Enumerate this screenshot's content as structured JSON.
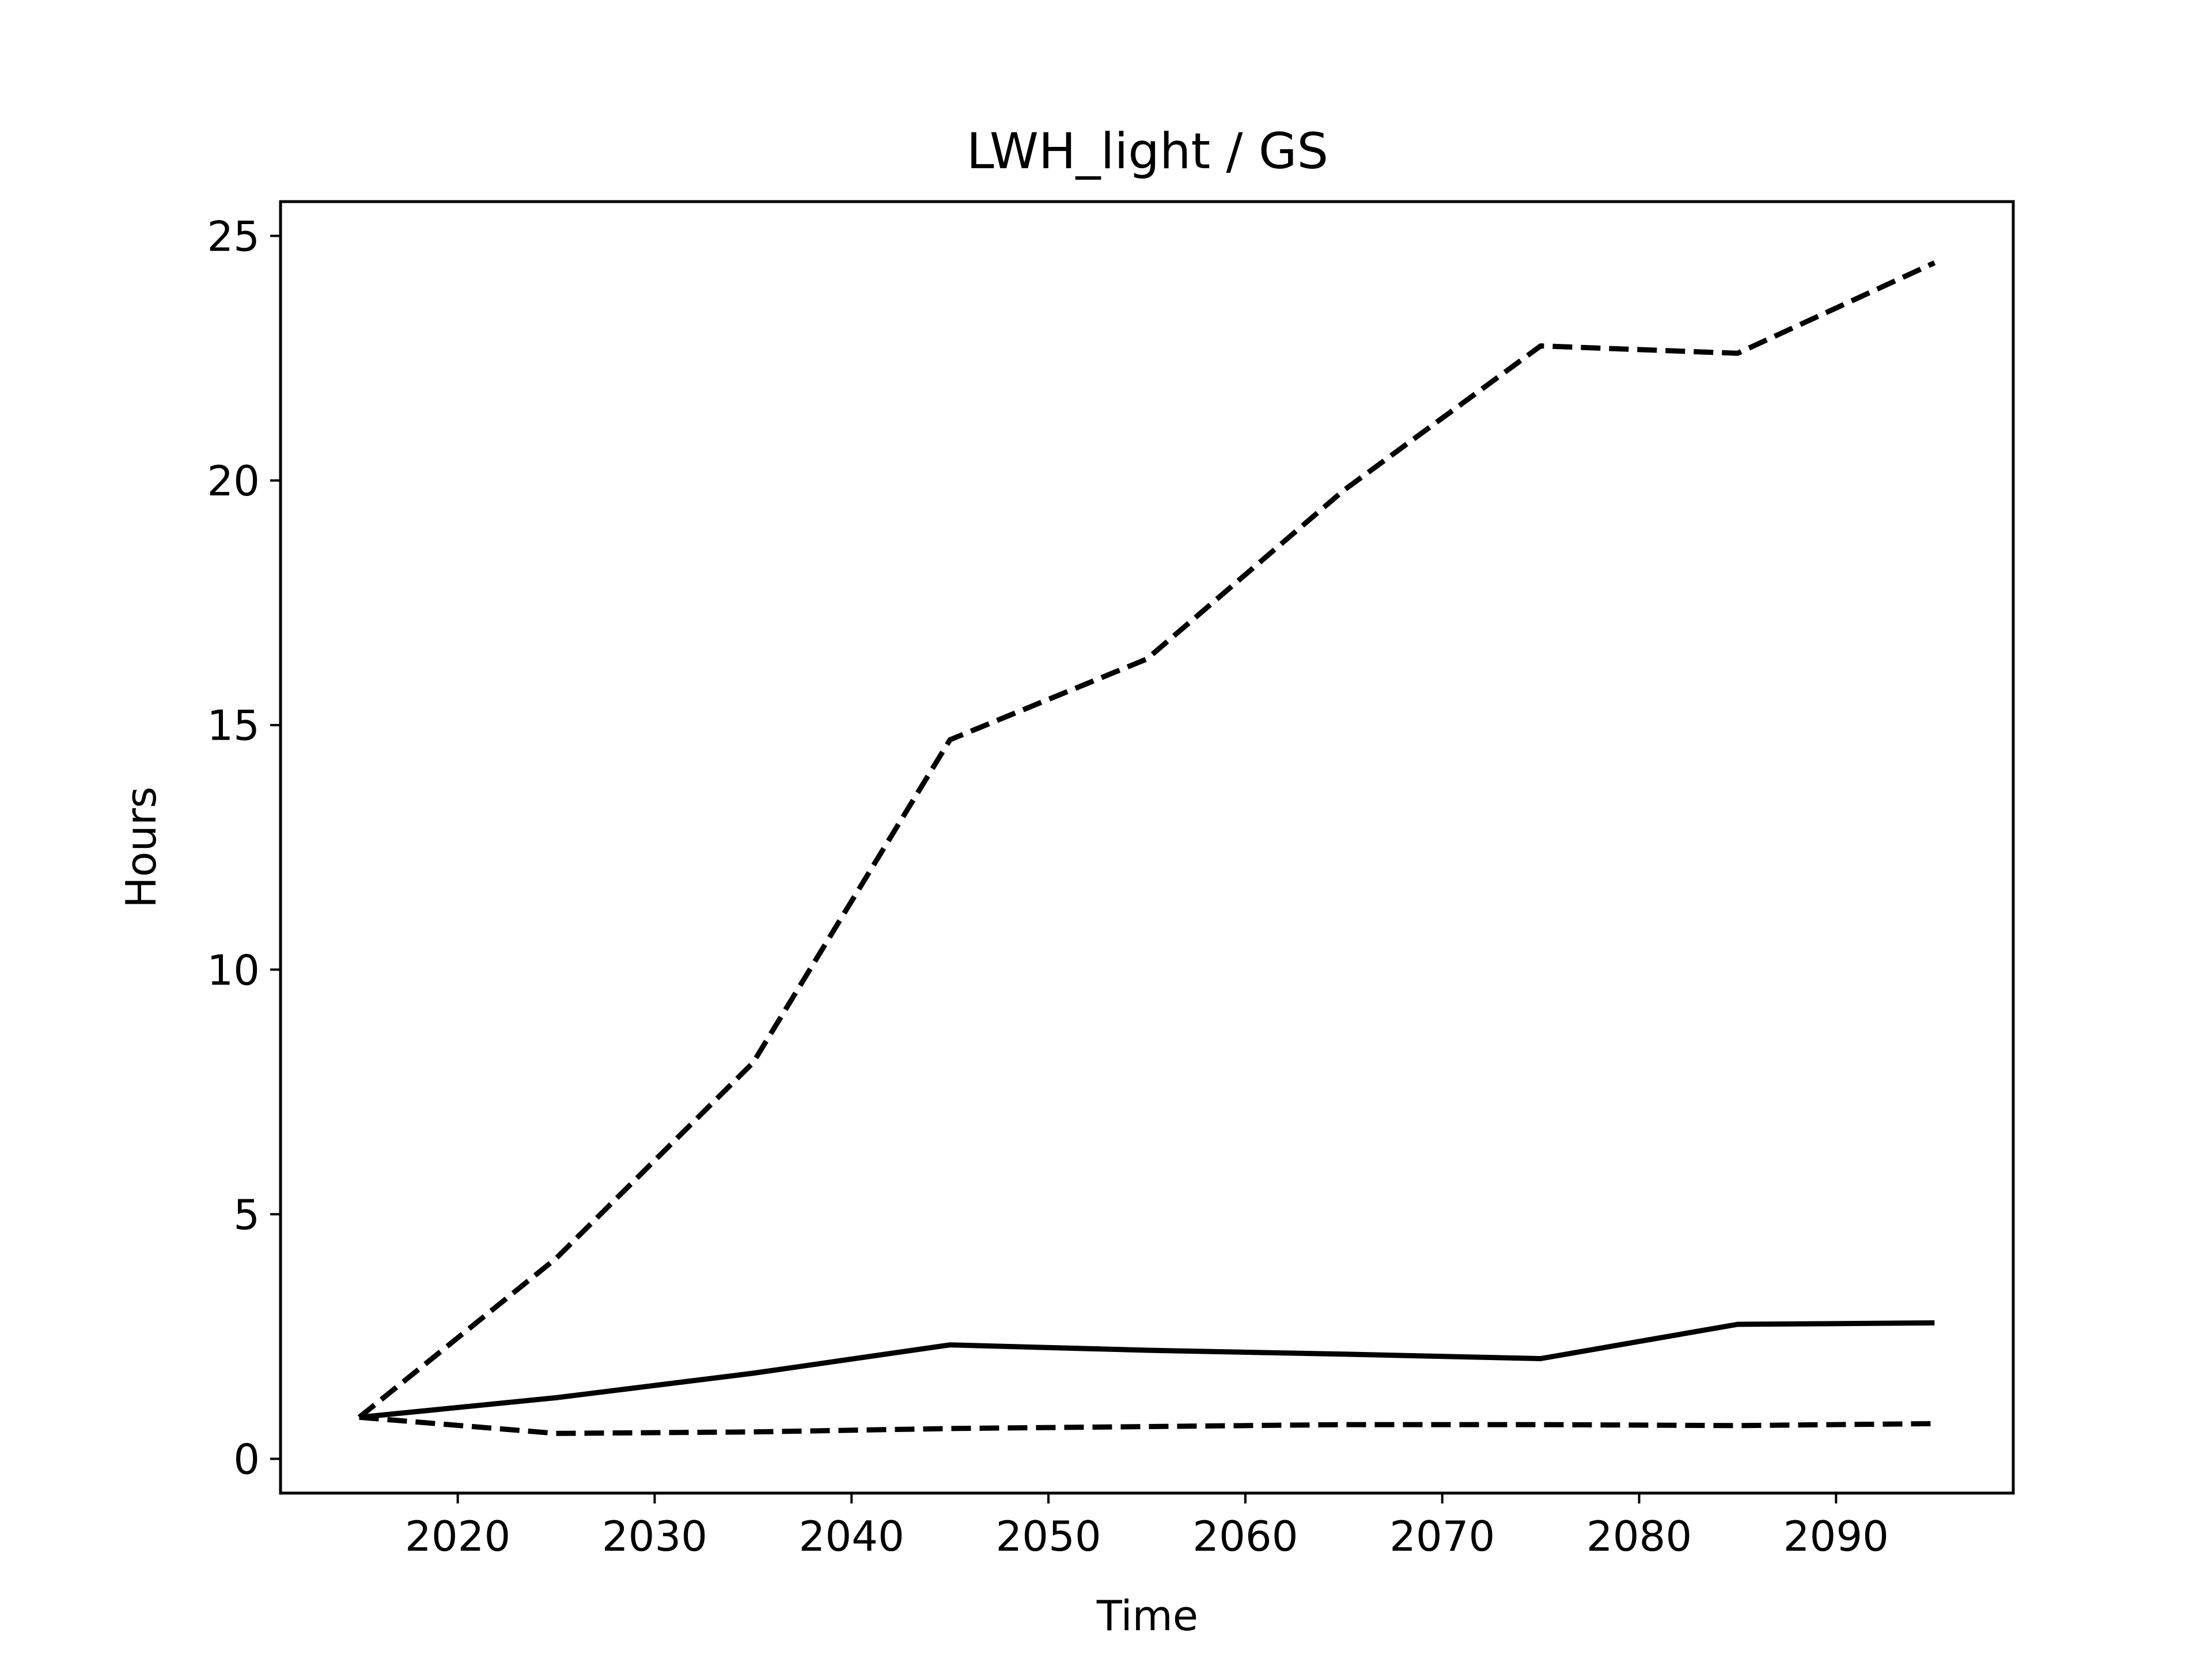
{
  "chart_data": {
    "type": "line",
    "title": "LWH_light / GS",
    "xlabel": "Time",
    "ylabel": "Hours",
    "xlim": [
      2011,
      2099
    ],
    "ylim": [
      -0.7,
      25.7
    ],
    "xticks": [
      2020,
      2030,
      2040,
      2050,
      2060,
      2070,
      2080,
      2090
    ],
    "yticks": [
      0,
      5,
      10,
      15,
      20,
      25
    ],
    "grid": false,
    "legend": "none",
    "series": [
      {
        "style": "solid",
        "color": "#000000",
        "x": [
          2015,
          2025,
          2035,
          2045,
          2055,
          2065,
          2075,
          2085,
          2095
        ],
        "y": [
          0.85,
          1.25,
          1.75,
          2.33,
          2.22,
          2.14,
          2.05,
          2.75,
          2.78
        ]
      },
      {
        "style": "dashed",
        "color": "#000000",
        "x": [
          2015,
          2025,
          2035,
          2045,
          2055,
          2065,
          2075,
          2085,
          2095
        ],
        "y": [
          0.85,
          4.1,
          8.1,
          14.7,
          16.35,
          19.8,
          22.75,
          22.6,
          24.45
        ]
      },
      {
        "style": "dashed",
        "color": "#000000",
        "x": [
          2015,
          2025,
          2035,
          2045,
          2055,
          2065,
          2075,
          2085,
          2095
        ],
        "y": [
          0.85,
          0.52,
          0.55,
          0.62,
          0.66,
          0.7,
          0.7,
          0.68,
          0.72
        ]
      }
    ]
  }
}
